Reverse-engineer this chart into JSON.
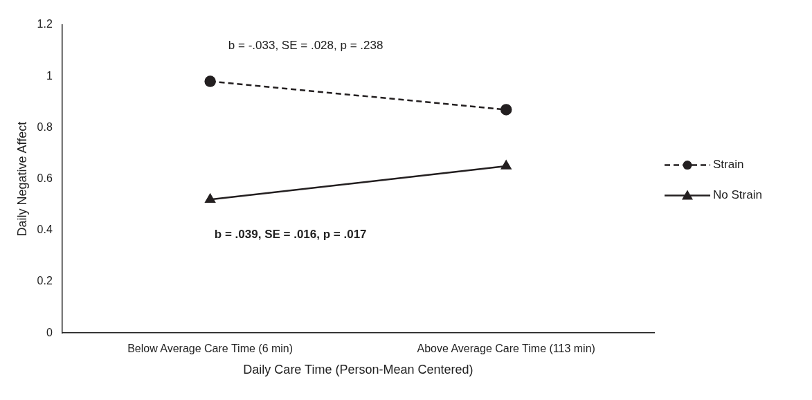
{
  "chart_data": {
    "type": "line",
    "xlabel": "Daily Care Time (Person-Mean Centered)",
    "ylabel": "Daily Negative Affect",
    "categories": [
      "Below Average Care Time (6 min)",
      "Above Average Care Time (113 min)"
    ],
    "series": [
      {
        "name": "Strain",
        "color": "#231f20",
        "values": [
          0.98,
          0.87
        ],
        "marker": "circle",
        "line_style": "dashed"
      },
      {
        "name": "No Strain",
        "color": "#231f20",
        "values": [
          0.52,
          0.65
        ],
        "marker": "triangle",
        "line_style": "solid"
      }
    ],
    "ylim": [
      0,
      1.2
    ],
    "yticks": [
      0,
      0.2,
      0.4,
      0.6,
      0.8,
      1,
      1.2
    ],
    "grid": false,
    "legend": "right",
    "annotations": [
      "b = -.033, SE = .028, p = .238",
      "b = .039, SE = .016, p = .017"
    ]
  }
}
